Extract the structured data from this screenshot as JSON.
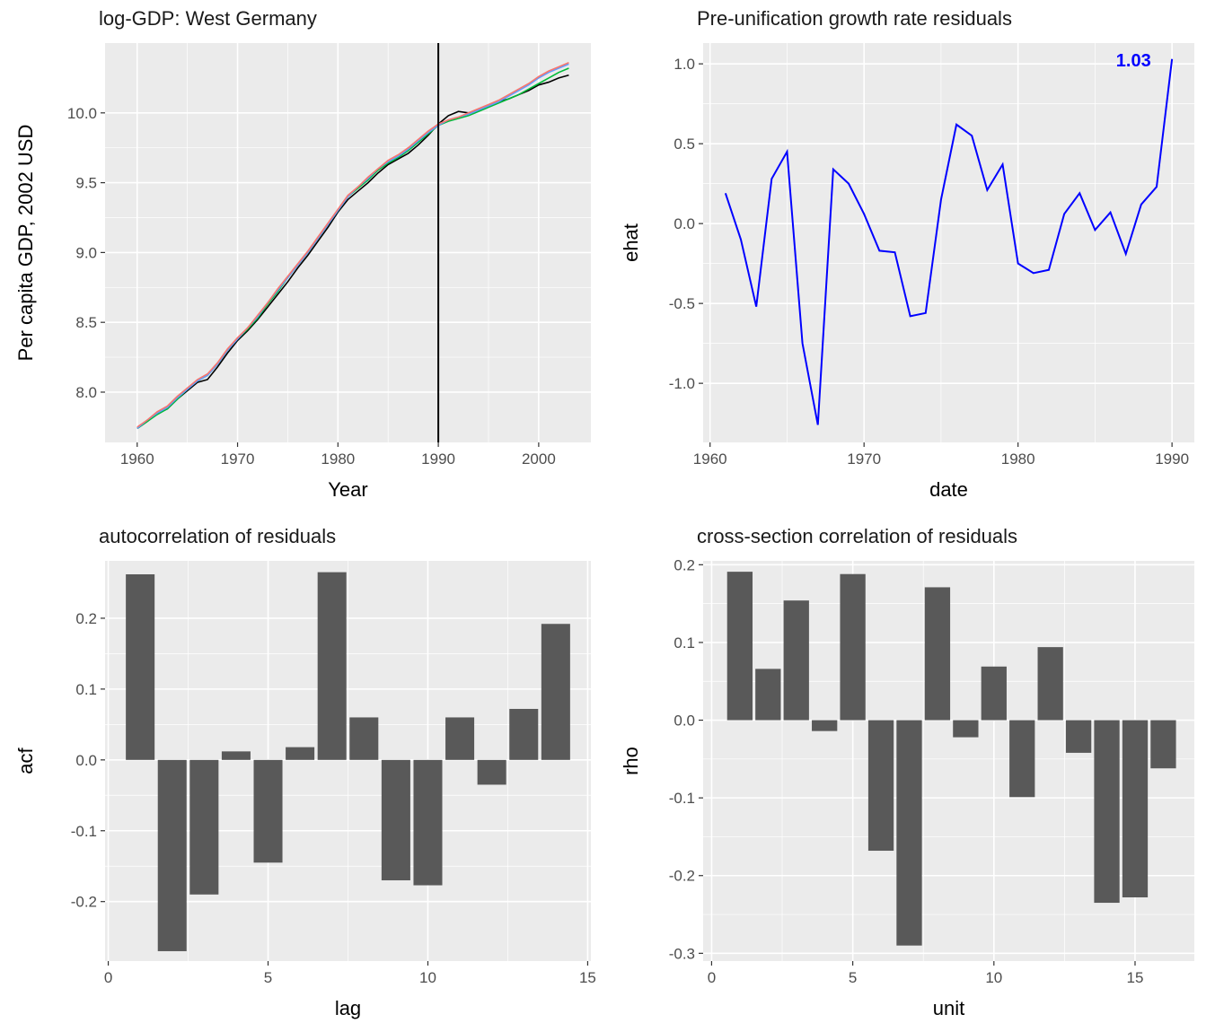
{
  "chart_data": [
    {
      "type": "line",
      "title": "log-GDP: West Germany",
      "xlabel": "Year",
      "ylabel": "Per capita GDP, 2002 USD",
      "xlim": [
        1956.8,
        2005.2
      ],
      "ylim": [
        7.64,
        10.5
      ],
      "x_ticks": [
        1960,
        1970,
        1980,
        1990,
        2000
      ],
      "x_tick_labels": [
        "1960",
        "1970",
        "1980",
        "1990",
        "2000"
      ],
      "y_ticks": [
        8.0,
        8.5,
        9.0,
        9.5,
        10.0
      ],
      "y_tick_labels": [
        "8.0",
        "8.5",
        "9.0",
        "9.5",
        "10.0"
      ],
      "vline": 1990,
      "grid": true,
      "x": [
        1960,
        1961,
        1962,
        1963,
        1964,
        1965,
        1966,
        1967,
        1968,
        1969,
        1970,
        1971,
        1972,
        1973,
        1974,
        1975,
        1976,
        1977,
        1978,
        1979,
        1980,
        1981,
        1982,
        1983,
        1984,
        1985,
        1986,
        1987,
        1988,
        1989,
        1990,
        1991,
        1992,
        1993,
        1994,
        1995,
        1996,
        1997,
        1998,
        1999,
        2000,
        2001,
        2002,
        2003
      ],
      "series": [
        {
          "color": "#000000",
          "values": [
            7.74,
            7.79,
            7.85,
            7.88,
            7.95,
            8.01,
            8.07,
            8.09,
            8.18,
            8.28,
            8.37,
            8.44,
            8.52,
            8.61,
            8.7,
            8.79,
            8.89,
            8.98,
            9.08,
            9.18,
            9.29,
            9.38,
            9.44,
            9.5,
            9.57,
            9.63,
            9.67,
            9.71,
            9.77,
            9.84,
            9.92,
            9.98,
            10.01,
            10.0,
            10.02,
            10.05,
            10.08,
            10.1,
            10.13,
            10.16,
            10.2,
            10.22,
            10.25,
            10.27
          ]
        },
        {
          "color": "#00ba38",
          "values": [
            7.74,
            7.79,
            7.84,
            7.88,
            7.95,
            8.02,
            8.08,
            8.12,
            8.2,
            8.3,
            8.38,
            8.45,
            8.53,
            8.63,
            8.72,
            8.82,
            8.91,
            9.0,
            9.1,
            9.2,
            9.3,
            9.4,
            9.46,
            9.52,
            9.59,
            9.64,
            9.68,
            9.73,
            9.79,
            9.85,
            9.91,
            9.94,
            9.96,
            9.98,
            10.01,
            10.04,
            10.07,
            10.1,
            10.13,
            10.17,
            10.21,
            10.25,
            10.29,
            10.32
          ]
        },
        {
          "color": "#619cff",
          "values": [
            7.74,
            7.8,
            7.85,
            7.89,
            7.96,
            8.02,
            8.08,
            8.12,
            8.2,
            8.3,
            8.38,
            8.46,
            8.54,
            8.64,
            8.73,
            8.82,
            8.91,
            9.0,
            9.1,
            9.2,
            9.3,
            9.4,
            9.47,
            9.53,
            9.6,
            9.65,
            9.69,
            9.74,
            9.8,
            9.86,
            9.91,
            9.95,
            9.97,
            9.99,
            10.02,
            10.05,
            10.08,
            10.12,
            10.16,
            10.2,
            10.25,
            10.29,
            10.32,
            10.35
          ]
        },
        {
          "color": "#f8766d",
          "values": [
            7.75,
            7.8,
            7.86,
            7.9,
            7.97,
            8.03,
            8.09,
            8.13,
            8.21,
            8.31,
            8.39,
            8.46,
            8.55,
            8.64,
            8.74,
            8.83,
            8.92,
            9.01,
            9.11,
            9.21,
            9.31,
            9.41,
            9.47,
            9.54,
            9.6,
            9.66,
            9.7,
            9.75,
            9.81,
            9.87,
            9.92,
            9.95,
            9.97,
            10.0,
            10.03,
            10.06,
            10.09,
            10.13,
            10.17,
            10.21,
            10.26,
            10.3,
            10.33,
            10.36
          ]
        }
      ]
    },
    {
      "type": "line",
      "title": "Pre-unification growth rate residuals",
      "xlabel": "date",
      "ylabel": "ehat",
      "xlim": [
        1959.55,
        1991.45
      ],
      "ylim": [
        -1.37,
        1.13
      ],
      "x_ticks": [
        1960,
        1970,
        1980,
        1990
      ],
      "x_tick_labels": [
        "1960",
        "1970",
        "1980",
        "1990"
      ],
      "y_ticks": [
        -1.0,
        -0.5,
        0.0,
        0.5,
        1.0
      ],
      "y_tick_labels": [
        "-1.0",
        "-0.5",
        "0.0",
        "0.5",
        "1.0"
      ],
      "grid": true,
      "color": "#0000ff",
      "x": [
        1961,
        1962,
        1963,
        1964,
        1965,
        1966,
        1967,
        1968,
        1969,
        1970,
        1971,
        1972,
        1973,
        1974,
        1975,
        1976,
        1977,
        1978,
        1979,
        1980,
        1981,
        1982,
        1983,
        1984,
        1985,
        1986,
        1987,
        1988,
        1989,
        1990
      ],
      "values": [
        0.19,
        -0.1,
        -0.52,
        0.28,
        0.45,
        -0.75,
        -1.26,
        0.34,
        0.25,
        0.06,
        -0.17,
        -0.18,
        -0.58,
        -0.56,
        0.15,
        0.62,
        0.55,
        0.21,
        0.37,
        -0.25,
        -0.31,
        -0.29,
        0.06,
        0.19,
        -0.04,
        0.07,
        -0.19,
        0.12,
        0.23,
        1.03
      ],
      "annotation": {
        "x": 1987.5,
        "y": 1.03,
        "text": "1.03"
      }
    },
    {
      "type": "bar",
      "title": "autocorrelation of residuals",
      "xlabel": "lag",
      "ylabel": "acf",
      "xlim": [
        -0.1,
        15.1
      ],
      "ylim": [
        -0.284,
        0.281
      ],
      "x_ticks": [
        0,
        5,
        10,
        15
      ],
      "x_tick_labels": [
        "0",
        "5",
        "10",
        "15"
      ],
      "y_ticks": [
        -0.2,
        -0.1,
        0.0,
        0.1,
        0.2
      ],
      "y_tick_labels": [
        "-0.2",
        "-0.1",
        "0.0",
        "0.1",
        "0.2"
      ],
      "grid": true,
      "bar_color": "#595959",
      "categories": [
        1,
        2,
        3,
        4,
        5,
        6,
        7,
        8,
        9,
        10,
        11,
        12,
        13,
        14
      ],
      "values": [
        0.262,
        -0.27,
        -0.19,
        0.012,
        -0.145,
        0.018,
        0.265,
        0.06,
        -0.17,
        -0.177,
        0.06,
        -0.035,
        0.072,
        0.192
      ]
    },
    {
      "type": "bar",
      "title": "cross-section correlation of residuals",
      "xlabel": "unit",
      "ylabel": "rho",
      "xlim": [
        -0.3,
        17.1
      ],
      "ylim": [
        -0.31,
        0.205
      ],
      "x_ticks": [
        0,
        5,
        10,
        15
      ],
      "x_tick_labels": [
        "0",
        "5",
        "10",
        "15"
      ],
      "y_ticks": [
        -0.3,
        -0.2,
        -0.1,
        0.0,
        0.1,
        0.2
      ],
      "y_tick_labels": [
        "-0.3",
        "-0.2",
        "-0.1",
        "0.0",
        "0.1",
        "0.2"
      ],
      "grid": true,
      "bar_color": "#595959",
      "categories": [
        1,
        2,
        3,
        4,
        5,
        6,
        7,
        8,
        9,
        10,
        11,
        12,
        13,
        14,
        15,
        16
      ],
      "values": [
        0.191,
        0.066,
        0.154,
        -0.014,
        0.188,
        -0.168,
        -0.29,
        0.171,
        -0.022,
        0.069,
        -0.099,
        0.094,
        -0.042,
        -0.235,
        -0.228,
        -0.062
      ]
    }
  ]
}
